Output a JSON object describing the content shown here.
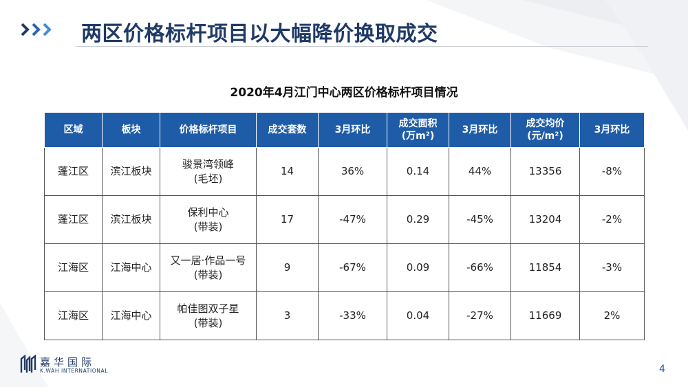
{
  "header": {
    "title": "两区价格标杆项目以大幅降价换取成交"
  },
  "table": {
    "title": "2020年4月江门中心两区价格标杆项目情况",
    "columns": [
      [
        "区域"
      ],
      [
        "板块"
      ],
      [
        "价格标杆项目"
      ],
      [
        "成交套数"
      ],
      [
        "3月环比"
      ],
      [
        "成交面积",
        "(万m²)"
      ],
      [
        "3月环比"
      ],
      [
        "成交均价",
        "(元/m²)"
      ],
      [
        "3月环比"
      ]
    ],
    "rows": [
      {
        "cells": [
          [
            "蓬江区"
          ],
          [
            "滨江板块"
          ],
          [
            "骏景湾领峰",
            "(毛坯)"
          ],
          [
            "14"
          ],
          [
            "36%"
          ],
          [
            "0.14"
          ],
          [
            "44%"
          ],
          [
            "13356"
          ],
          [
            "-8%"
          ]
        ]
      },
      {
        "cells": [
          [
            "蓬江区"
          ],
          [
            "滨江板块"
          ],
          [
            "保利中心",
            "(带装)"
          ],
          [
            "17"
          ],
          [
            "-47%"
          ],
          [
            "0.29"
          ],
          [
            "-45%"
          ],
          [
            "13204"
          ],
          [
            "-2%"
          ]
        ]
      },
      {
        "cells": [
          [
            "江海区"
          ],
          [
            "江海中心"
          ],
          [
            "又一居·作品一号",
            "(带装)"
          ],
          [
            "9"
          ],
          [
            "-67%"
          ],
          [
            "0.09"
          ],
          [
            "-66%"
          ],
          [
            "11854"
          ],
          [
            "-3%"
          ]
        ]
      },
      {
        "cells": [
          [
            "江海区"
          ],
          [
            "江海中心"
          ],
          [
            "帕佳图双子星",
            "(带装)"
          ],
          [
            "3"
          ],
          [
            "-33%"
          ],
          [
            "0.04"
          ],
          [
            "-27%"
          ],
          [
            "11669"
          ],
          [
            "2%"
          ]
        ]
      }
    ]
  },
  "footer": {
    "logo_cn": "嘉华国际",
    "logo_en": "K.WAH INTERNATIONAL",
    "page_number": "4"
  },
  "colors": {
    "title": "#1f3a66",
    "header_fill": "#1f5ca8",
    "negative": "#a01818",
    "arrow_dark": "#1f3a66",
    "arrow_light": "#3f8fd8"
  },
  "icons": {
    "header": "chevron-arrows-icon",
    "logo": "kwah-logo-mark-icon"
  }
}
